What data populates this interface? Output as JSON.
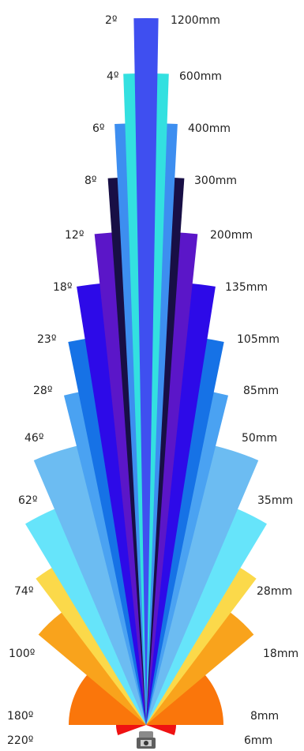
{
  "diagram": {
    "entries": [
      {
        "angle": "2º",
        "focal": "1200mm",
        "color": "#3f4ff0"
      },
      {
        "angle": "4º",
        "focal": "600mm",
        "color": "#33e0e0"
      },
      {
        "angle": "6º",
        "focal": "400mm",
        "color": "#3d8ef0"
      },
      {
        "angle": "8º",
        "focal": "300mm",
        "color": "#180f45"
      },
      {
        "angle": "12º",
        "focal": "200mm",
        "color": "#5b16c8"
      },
      {
        "angle": "18º",
        "focal": "135mm",
        "color": "#2d0ae8"
      },
      {
        "angle": "23º",
        "focal": "105mm",
        "color": "#1672e6"
      },
      {
        "angle": "28º",
        "focal": "85mm",
        "color": "#4aa2f2"
      },
      {
        "angle": "46º",
        "focal": "50mm",
        "color": "#6cbcf2"
      },
      {
        "angle": "62º",
        "focal": "35mm",
        "color": "#66e4fa"
      },
      {
        "angle": "74º",
        "focal": "28mm",
        "color": "#fbd94a"
      },
      {
        "angle": "100º",
        "focal": "18mm",
        "color": "#f9a31c"
      },
      {
        "angle": "180º",
        "focal": "8mm",
        "color": "#fa760b"
      },
      {
        "angle": "220º",
        "focal": "6mm",
        "color": "#ef1212"
      }
    ],
    "camera_icon": "camera-icon"
  }
}
